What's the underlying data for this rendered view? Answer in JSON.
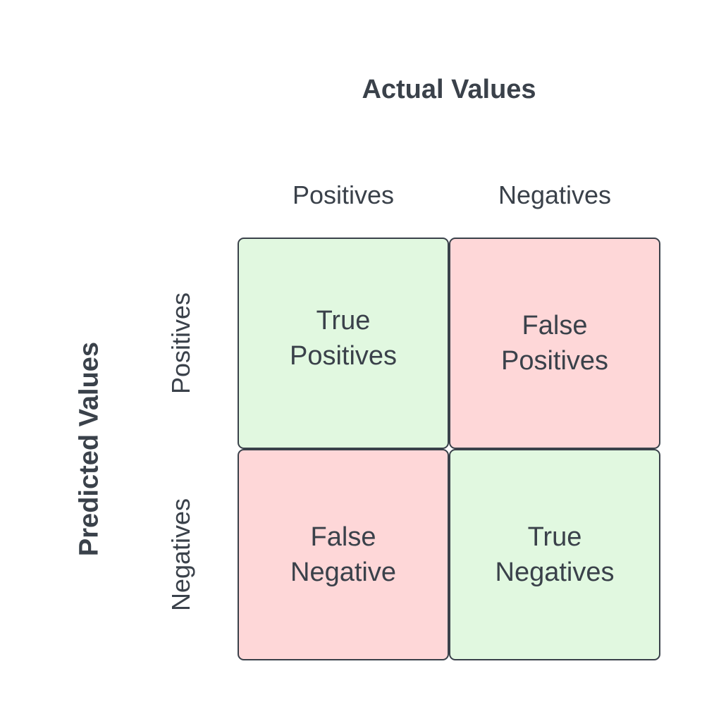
{
  "diagram": {
    "title_top": "Actual Values",
    "title_left": "Predicted Values",
    "column_headers": [
      "Positives",
      "Negatives"
    ],
    "row_headers": [
      "Positives",
      "Negatives"
    ],
    "cells": [
      {
        "line1": "True",
        "line2": "Positives",
        "color": "#e1f8e0"
      },
      {
        "line1": "False",
        "line2": "Positives",
        "color": "#fed7d8"
      },
      {
        "line1": "False",
        "line2": "Negative",
        "color": "#fed7d8"
      },
      {
        "line1": "True",
        "line2": "Negatives",
        "color": "#e1f8e0"
      }
    ],
    "text_color": "#3a414a"
  }
}
